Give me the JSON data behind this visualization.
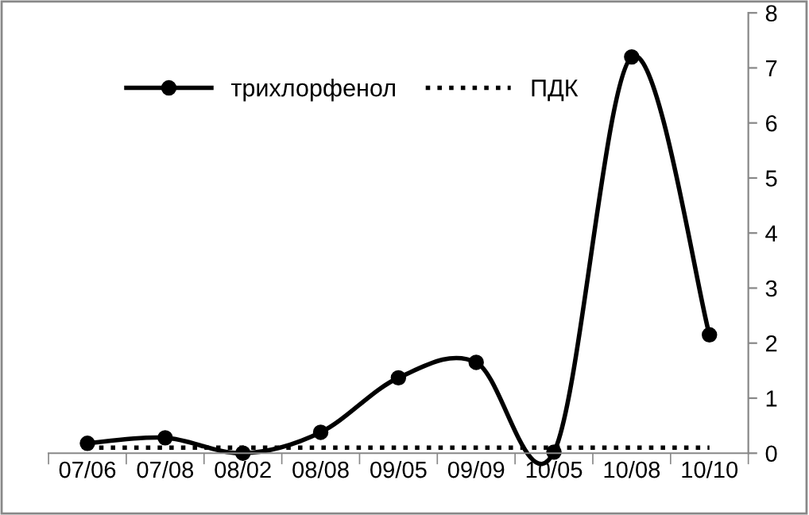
{
  "chart_data": {
    "type": "line",
    "categories": [
      "07/06",
      "07/08",
      "08/02",
      "08/08",
      "09/05",
      "09/09",
      "10/05",
      "10/08",
      "10/10"
    ],
    "series": [
      {
        "name": "трихлорфенол",
        "color": "#000000",
        "marker": "circle",
        "line_style": "solid",
        "values": [
          0.18,
          0.28,
          0.0,
          0.38,
          1.37,
          1.65,
          0.02,
          7.2,
          2.15
        ]
      },
      {
        "name": "ПДК",
        "color": "#000000",
        "marker": "none",
        "line_style": "dotted",
        "values": [
          0.1,
          0.1,
          0.1,
          0.1,
          0.1,
          0.1,
          0.1,
          0.1,
          0.1
        ]
      }
    ],
    "ylim": [
      0,
      8
    ],
    "yticks": [
      0,
      1,
      2,
      3,
      4,
      5,
      6,
      7,
      8
    ],
    "grid": false,
    "legend": "top left"
  }
}
